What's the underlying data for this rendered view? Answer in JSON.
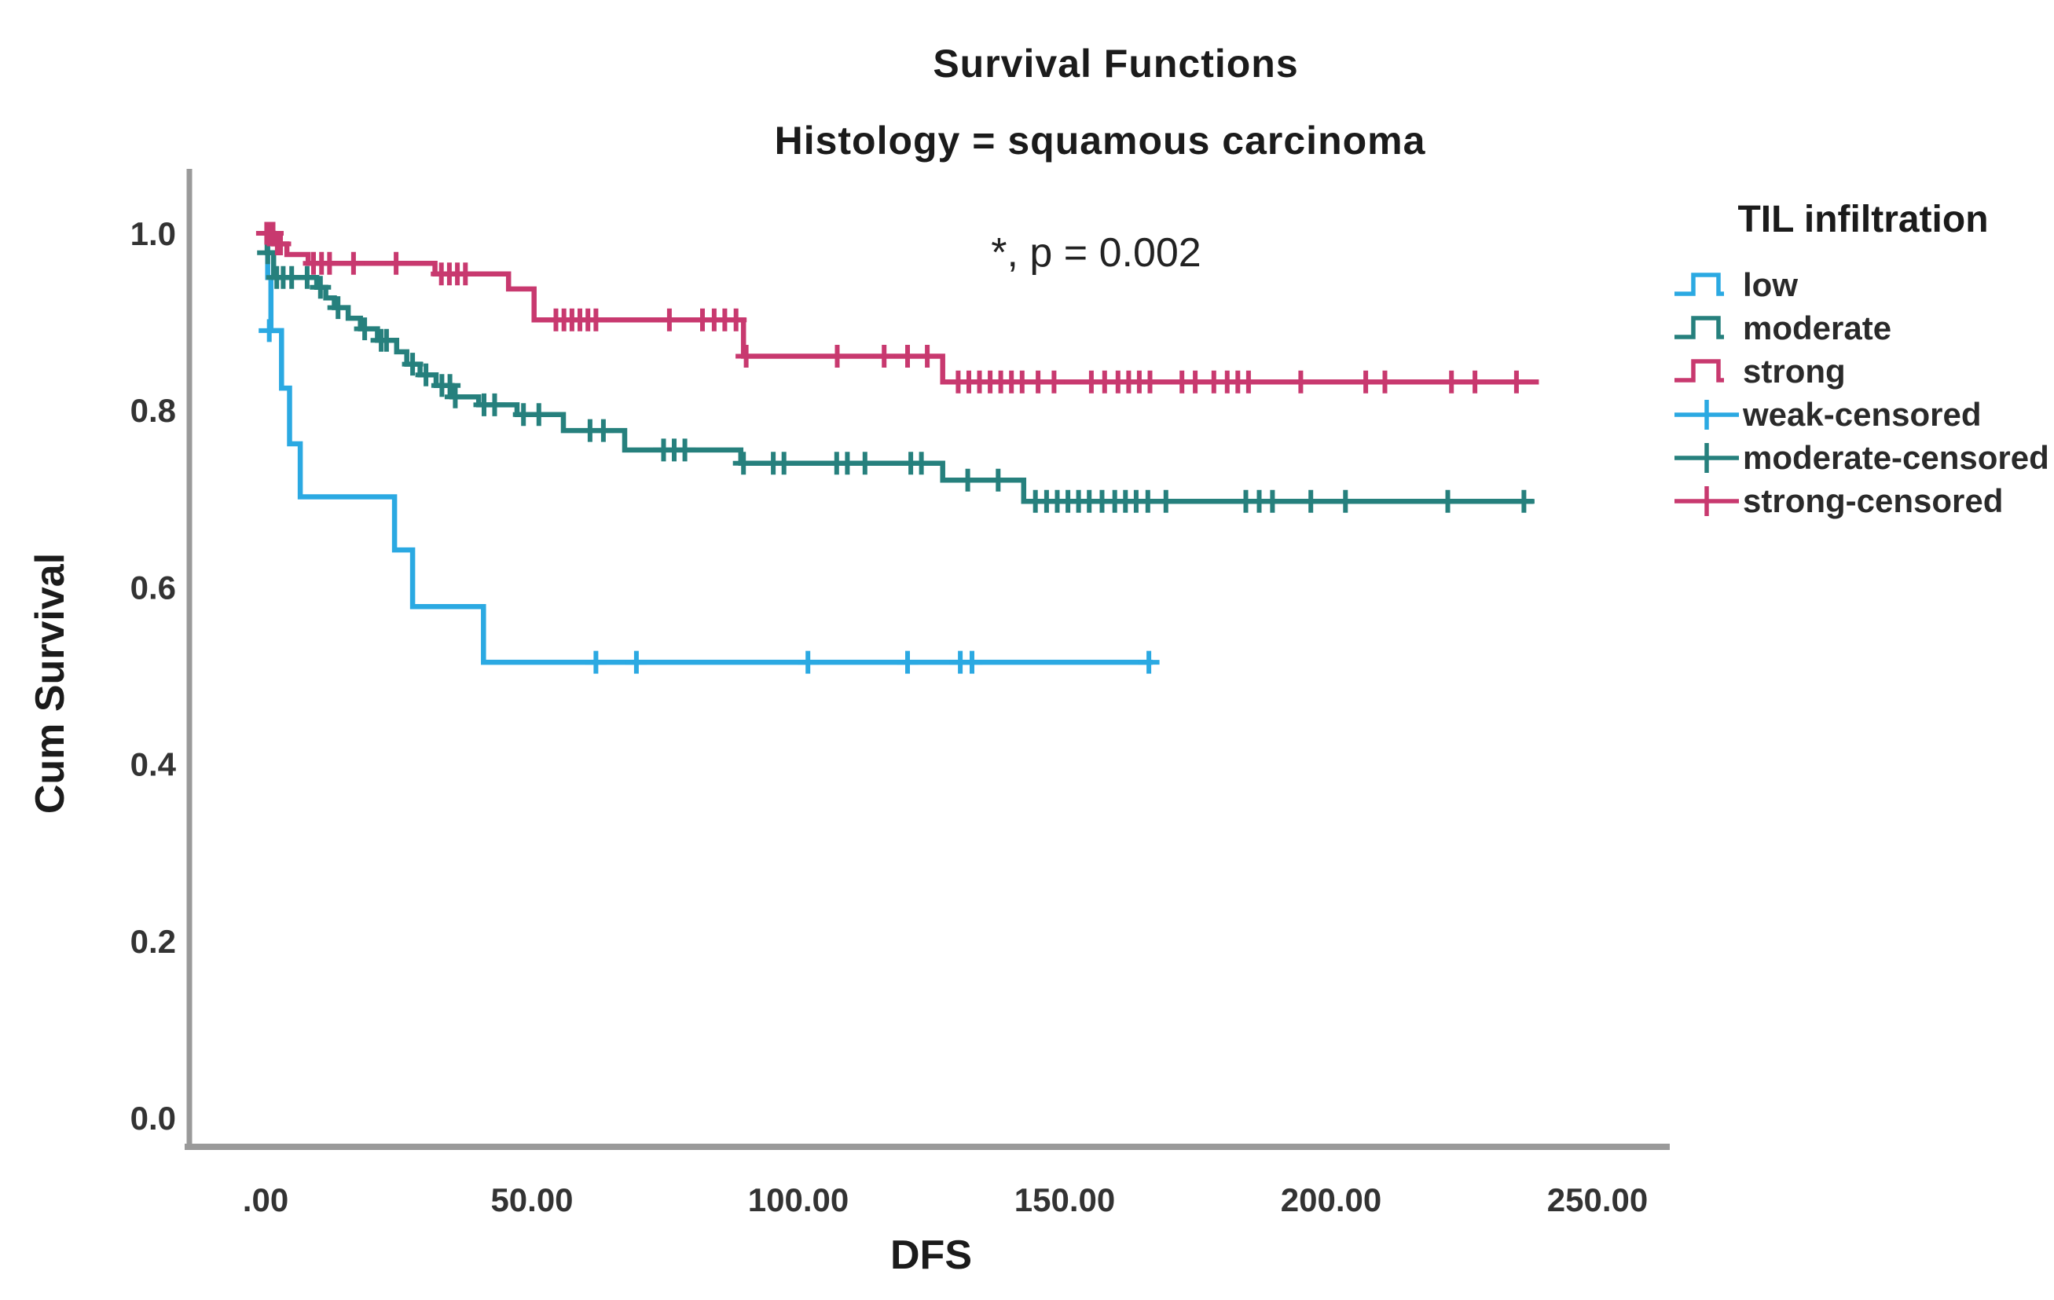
{
  "chart_data": {
    "type": "line",
    "subtype": "kaplan_meier_step",
    "title": "Survival Functions",
    "subtitle": "Histology = squamous carcinoma",
    "annotation": "*, p = 0.002",
    "xlabel": "DFS",
    "ylabel": "Cum Survival",
    "xlim": [
      0,
      250
    ],
    "ylim": [
      0.0,
      1.0
    ],
    "grid": false,
    "x_ticks": [
      {
        "value": 0,
        "label": ".00"
      },
      {
        "value": 50,
        "label": "50.00"
      },
      {
        "value": 100,
        "label": "100.00"
      },
      {
        "value": 150,
        "label": "150.00"
      },
      {
        "value": 200,
        "label": "200.00"
      },
      {
        "value": 250,
        "label": "250.00"
      }
    ],
    "y_ticks": [
      {
        "value": 0.0,
        "label": "0.0"
      },
      {
        "value": 0.2,
        "label": "0.2"
      },
      {
        "value": 0.4,
        "label": "0.4"
      },
      {
        "value": 0.6,
        "label": "0.6"
      },
      {
        "value": 0.8,
        "label": "0.8"
      },
      {
        "value": 1.0,
        "label": "1.0"
      }
    ],
    "colors": {
      "low": "#2BA9E2",
      "moderate": "#26807D",
      "strong": "#C8396F",
      "axis": "#9a9a9a",
      "text": "#1b1b1b"
    },
    "legend": {
      "title": "TIL infiltration",
      "position": "right",
      "items": [
        {
          "label": "low",
          "marker": "step",
          "color": "#2BA9E2"
        },
        {
          "label": "moderate",
          "marker": "step",
          "color": "#26807D"
        },
        {
          "label": "strong",
          "marker": "step",
          "color": "#C8396F"
        },
        {
          "label": "weak-censored",
          "marker": "censor",
          "color": "#2BA9E2"
        },
        {
          "label": "moderate-censored",
          "marker": "censor",
          "color": "#26807D"
        },
        {
          "label": "strong-censored",
          "marker": "censor",
          "color": "#C8396F"
        }
      ]
    },
    "series": [
      {
        "name": "low",
        "color": "#2BA9E2",
        "points": [
          [
            0,
            1.0
          ],
          [
            0.4,
            0.95
          ],
          [
            1,
            0.89
          ],
          [
            3,
            0.825
          ],
          [
            4.5,
            0.762
          ],
          [
            6.5,
            0.702
          ],
          [
            24.2,
            0.642
          ],
          [
            27.6,
            0.578
          ],
          [
            40.9,
            0.515
          ],
          [
            166.5,
            0.515
          ]
        ],
        "censors": [
          [
            0.7,
            0.89
          ],
          [
            62,
            0.515
          ],
          [
            69.6,
            0.515
          ],
          [
            101.8,
            0.515
          ],
          [
            120.5,
            0.515
          ],
          [
            130.4,
            0.515
          ],
          [
            132.6,
            0.515
          ],
          [
            165.8,
            0.515
          ]
        ]
      },
      {
        "name": "moderate",
        "color": "#26807D",
        "points": [
          [
            0,
            1.0
          ],
          [
            0.3,
            0.978
          ],
          [
            1.5,
            0.95
          ],
          [
            9.6,
            0.939
          ],
          [
            11.3,
            0.927
          ],
          [
            12.9,
            0.916
          ],
          [
            15.5,
            0.904
          ],
          [
            17.8,
            0.892
          ],
          [
            21,
            0.879
          ],
          [
            24.6,
            0.866
          ],
          [
            26.5,
            0.852
          ],
          [
            29,
            0.84
          ],
          [
            32,
            0.828
          ],
          [
            35,
            0.815
          ],
          [
            40,
            0.806
          ],
          [
            47.2,
            0.795
          ],
          [
            55.9,
            0.777
          ],
          [
            67.4,
            0.755
          ],
          [
            89.2,
            0.74
          ],
          [
            127.1,
            0.721
          ],
          [
            142.3,
            0.697
          ],
          [
            238,
            0.697
          ]
        ],
        "censors": [
          [
            0.4,
            0.978
          ],
          [
            2.1,
            0.95
          ],
          [
            3.3,
            0.95
          ],
          [
            4.9,
            0.95
          ],
          [
            7.8,
            0.95
          ],
          [
            10.3,
            0.939
          ],
          [
            13.6,
            0.916
          ],
          [
            18.6,
            0.892
          ],
          [
            21.7,
            0.879
          ],
          [
            22.7,
            0.879
          ],
          [
            27.6,
            0.852
          ],
          [
            30.1,
            0.84
          ],
          [
            33.1,
            0.828
          ],
          [
            34.6,
            0.828
          ],
          [
            35.6,
            0.815
          ],
          [
            41,
            0.806
          ],
          [
            43,
            0.806
          ],
          [
            48.4,
            0.795
          ],
          [
            51.3,
            0.795
          ],
          [
            60.9,
            0.777
          ],
          [
            63.4,
            0.777
          ],
          [
            74.7,
            0.755
          ],
          [
            76.7,
            0.755
          ],
          [
            78.7,
            0.755
          ],
          [
            89.7,
            0.74
          ],
          [
            95.3,
            0.74
          ],
          [
            97.3,
            0.74
          ],
          [
            107.2,
            0.74
          ],
          [
            109.2,
            0.74
          ],
          [
            112.5,
            0.74
          ],
          [
            121.1,
            0.74
          ],
          [
            123.1,
            0.74
          ],
          [
            131.8,
            0.721
          ],
          [
            137.5,
            0.721
          ],
          [
            144.5,
            0.697
          ],
          [
            146.6,
            0.697
          ],
          [
            148.6,
            0.697
          ],
          [
            150.6,
            0.697
          ],
          [
            152.6,
            0.697
          ],
          [
            154.6,
            0.697
          ],
          [
            157,
            0.697
          ],
          [
            159.4,
            0.697
          ],
          [
            161.4,
            0.697
          ],
          [
            163.4,
            0.697
          ],
          [
            165.6,
            0.697
          ],
          [
            169,
            0.697
          ],
          [
            184,
            0.697
          ],
          [
            186.5,
            0.697
          ],
          [
            189,
            0.697
          ],
          [
            196.2,
            0.697
          ],
          [
            202.7,
            0.697
          ],
          [
            221.9,
            0.697
          ],
          [
            236.2,
            0.697
          ]
        ]
      },
      {
        "name": "strong",
        "color": "#C8396F",
        "points": [
          [
            0,
            1.0
          ],
          [
            1.5,
            0.988
          ],
          [
            4,
            0.976
          ],
          [
            8,
            0.966
          ],
          [
            31.8,
            0.954
          ],
          [
            45.6,
            0.937
          ],
          [
            50.4,
            0.902
          ],
          [
            89.7,
            0.861
          ],
          [
            127.1,
            0.832
          ],
          [
            239,
            0.832
          ]
        ],
        "censors": [
          [
            0.2,
            1.0
          ],
          [
            0.6,
            1.0
          ],
          [
            1,
            1.0
          ],
          [
            1.4,
            1.0
          ],
          [
            2.2,
            0.988
          ],
          [
            2.8,
            0.988
          ],
          [
            9,
            0.966
          ],
          [
            10.5,
            0.966
          ],
          [
            12,
            0.966
          ],
          [
            16.5,
            0.966
          ],
          [
            24.5,
            0.966
          ],
          [
            33,
            0.954
          ],
          [
            34.5,
            0.954
          ],
          [
            36,
            0.954
          ],
          [
            37.5,
            0.954
          ],
          [
            54.5,
            0.902
          ],
          [
            56,
            0.902
          ],
          [
            57.5,
            0.902
          ],
          [
            59,
            0.902
          ],
          [
            60.5,
            0.902
          ],
          [
            62,
            0.902
          ],
          [
            75.8,
            0.902
          ],
          [
            82,
            0.902
          ],
          [
            84.2,
            0.902
          ],
          [
            86.2,
            0.902
          ],
          [
            88.3,
            0.902
          ],
          [
            90.2,
            0.861
          ],
          [
            107.3,
            0.861
          ],
          [
            116.1,
            0.861
          ],
          [
            120.5,
            0.861
          ],
          [
            124.2,
            0.861
          ],
          [
            130,
            0.832
          ],
          [
            132,
            0.832
          ],
          [
            134,
            0.832
          ],
          [
            136,
            0.832
          ],
          [
            138,
            0.832
          ],
          [
            140,
            0.832
          ],
          [
            142,
            0.832
          ],
          [
            145,
            0.832
          ],
          [
            148,
            0.832
          ],
          [
            155,
            0.832
          ],
          [
            157.5,
            0.832
          ],
          [
            160,
            0.832
          ],
          [
            162,
            0.832
          ],
          [
            164,
            0.832
          ],
          [
            166,
            0.832
          ],
          [
            172,
            0.832
          ],
          [
            174.5,
            0.832
          ],
          [
            178,
            0.832
          ],
          [
            180.5,
            0.832
          ],
          [
            182.5,
            0.832
          ],
          [
            184.5,
            0.832
          ],
          [
            194.3,
            0.832
          ],
          [
            206.5,
            0.832
          ],
          [
            210.1,
            0.832
          ],
          [
            222.6,
            0.832
          ],
          [
            227,
            0.832
          ],
          [
            234.8,
            0.832
          ]
        ]
      }
    ]
  }
}
